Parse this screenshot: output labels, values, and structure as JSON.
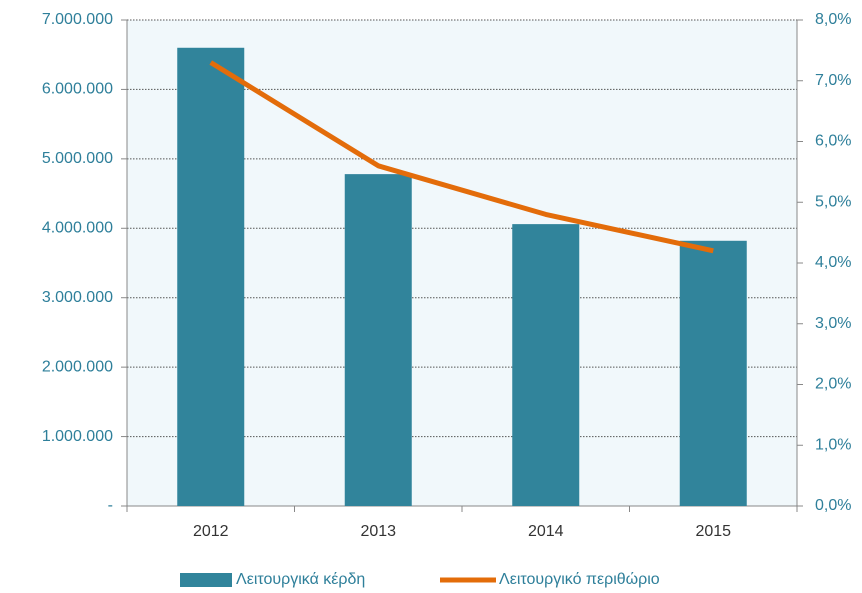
{
  "chart_data": {
    "type": "bar-line",
    "categories": [
      "2012",
      "2013",
      "2014",
      "2015"
    ],
    "series": [
      {
        "name": "Λειτουργικά κέρδη",
        "type": "bar",
        "color": "#31849b",
        "values": [
          6600000,
          4780000,
          4060000,
          3820000
        ]
      },
      {
        "name": "Λειτουργικό περιθώριο",
        "type": "line",
        "axis": "y2",
        "color": "#e36c0a",
        "values": [
          7.3,
          5.6,
          4.8,
          4.2
        ]
      }
    ],
    "ylim": [
      0,
      7000000
    ],
    "yticks": [
      {
        "value": 0,
        "label": "-"
      },
      {
        "value": 1000000,
        "label": "1.000.000"
      },
      {
        "value": 2000000,
        "label": "2.000.000"
      },
      {
        "value": 3000000,
        "label": "3.000.000"
      },
      {
        "value": 4000000,
        "label": "4.000.000"
      },
      {
        "value": 5000000,
        "label": "5.000.000"
      },
      {
        "value": 6000000,
        "label": "6.000.000"
      },
      {
        "value": 7000000,
        "label": "7.000.000"
      }
    ],
    "y2lim": [
      0,
      8
    ],
    "y2ticks": [
      {
        "value": 0,
        "label": "0,0%"
      },
      {
        "value": 1,
        "label": "1,0%"
      },
      {
        "value": 2,
        "label": "2,0%"
      },
      {
        "value": 3,
        "label": "3,0%"
      },
      {
        "value": 4,
        "label": "4,0%"
      },
      {
        "value": 5,
        "label": "5,0%"
      },
      {
        "value": 6,
        "label": "6,0%"
      },
      {
        "value": 7,
        "label": "7,0%"
      },
      {
        "value": 8,
        "label": "8,0%"
      }
    ],
    "grid": true,
    "legend": "bottom"
  }
}
